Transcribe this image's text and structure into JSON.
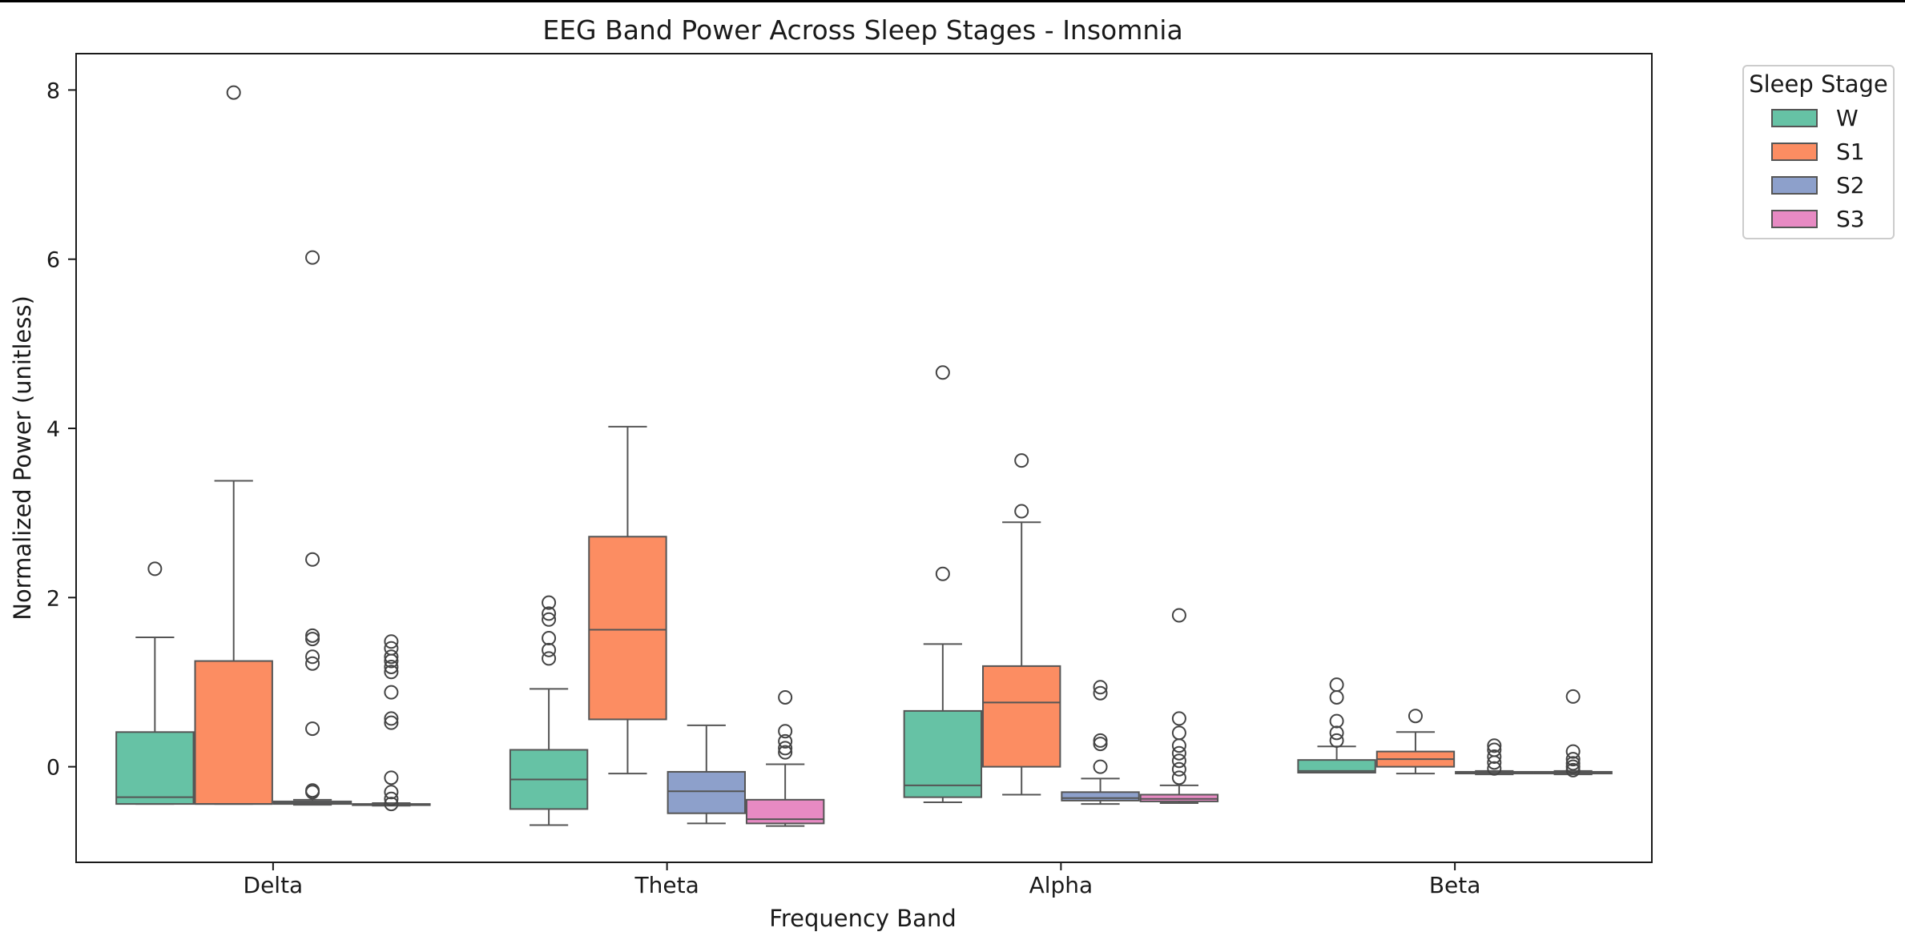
{
  "chart_data": {
    "type": "box",
    "title": "EEG Band Power Across Sleep Stages - Insomnia",
    "xlabel": "Frequency Band",
    "ylabel": "Normalized Power (unitless)",
    "categories": [
      "Delta",
      "Theta",
      "Alpha",
      "Beta"
    ],
    "yticks": [
      0,
      2,
      4,
      6,
      8
    ],
    "ylim": [
      -1.13,
      8.43
    ],
    "grid": false,
    "legend": {
      "title": "Sleep Stage",
      "placement": "outside-top-right"
    },
    "series": [
      {
        "name": "W",
        "color": "#66c2a5",
        "boxes": [
          {
            "category": "Delta",
            "whislo": -0.44,
            "q1": -0.44,
            "med": -0.36,
            "q3": 0.41,
            "whishi": 1.53,
            "fliers": [
              2.34
            ]
          },
          {
            "category": "Theta",
            "whislo": -0.69,
            "q1": -0.5,
            "med": -0.15,
            "q3": 0.2,
            "whishi": 0.92,
            "fliers": [
              1.28,
              1.38,
              1.52,
              1.74,
              1.81,
              1.94
            ]
          },
          {
            "category": "Alpha",
            "whislo": -0.42,
            "q1": -0.36,
            "med": -0.22,
            "q3": 0.66,
            "whishi": 1.45,
            "fliers": [
              2.28,
              4.66
            ]
          },
          {
            "category": "Beta",
            "whislo": -0.07,
            "q1": -0.07,
            "med": -0.05,
            "q3": 0.08,
            "whishi": 0.24,
            "fliers": [
              0.31,
              0.4,
              0.54,
              0.82,
              0.97
            ]
          }
        ]
      },
      {
        "name": "S1",
        "color": "#fc8d62",
        "boxes": [
          {
            "category": "Delta",
            "whislo": -0.44,
            "q1": -0.44,
            "med": -0.44,
            "q3": 1.25,
            "whishi": 3.38,
            "fliers": [
              7.97
            ]
          },
          {
            "category": "Theta",
            "whislo": -0.08,
            "q1": 0.56,
            "med": 1.62,
            "q3": 2.72,
            "whishi": 4.02,
            "fliers": []
          },
          {
            "category": "Alpha",
            "whislo": -0.33,
            "q1": 0.0,
            "med": 0.76,
            "q3": 1.19,
            "whishi": 2.89,
            "fliers": [
              3.02,
              3.62
            ]
          },
          {
            "category": "Beta",
            "whislo": -0.08,
            "q1": 0.0,
            "med": 0.09,
            "q3": 0.18,
            "whishi": 0.41,
            "fliers": [
              0.6
            ]
          }
        ]
      },
      {
        "name": "S2",
        "color": "#8da0cb",
        "boxes": [
          {
            "category": "Delta",
            "whislo": -0.45,
            "q1": -0.44,
            "med": -0.43,
            "q3": -0.41,
            "whishi": -0.39,
            "fliers": [
              -0.3,
              -0.28,
              0.45,
              1.22,
              1.3,
              1.51,
              1.55,
              2.45,
              6.02
            ]
          },
          {
            "category": "Theta",
            "whislo": -0.67,
            "q1": -0.55,
            "med": -0.29,
            "q3": -0.06,
            "whishi": 0.49,
            "fliers": []
          },
          {
            "category": "Alpha",
            "whislo": -0.44,
            "q1": -0.4,
            "med": -0.37,
            "q3": -0.3,
            "whishi": -0.14,
            "fliers": [
              0.0,
              0.27,
              0.31,
              0.87,
              0.94
            ]
          },
          {
            "category": "Beta",
            "whislo": -0.09,
            "q1": -0.08,
            "med": -0.07,
            "q3": -0.06,
            "whishi": -0.05,
            "fliers": [
              -0.02,
              0.05,
              0.12,
              0.2,
              0.25
            ]
          }
        ]
      },
      {
        "name": "S3",
        "color": "#e78ac3",
        "boxes": [
          {
            "category": "Delta",
            "whislo": -0.46,
            "q1": -0.45,
            "med": -0.45,
            "q3": -0.44,
            "whishi": -0.43,
            "fliers": [
              -0.44,
              -0.38,
              -0.3,
              -0.13,
              0.52,
              0.57,
              0.88,
              1.12,
              1.18,
              1.25,
              1.3,
              1.4,
              1.48
            ]
          },
          {
            "category": "Theta",
            "whislo": -0.7,
            "q1": -0.67,
            "med": -0.62,
            "q3": -0.39,
            "whishi": 0.03,
            "fliers": [
              0.17,
              0.22,
              0.3,
              0.42,
              0.82
            ]
          },
          {
            "category": "Alpha",
            "whislo": -0.43,
            "q1": -0.41,
            "med": -0.38,
            "q3": -0.33,
            "whishi": -0.22,
            "fliers": [
              -0.13,
              -0.03,
              0.07,
              0.16,
              0.25,
              0.4,
              0.57,
              1.79
            ]
          },
          {
            "category": "Beta",
            "whislo": -0.09,
            "q1": -0.08,
            "med": -0.07,
            "q3": -0.06,
            "whishi": -0.05,
            "fliers": [
              -0.04,
              0.0,
              0.04,
              0.09,
              0.18,
              0.83
            ]
          }
        ]
      }
    ]
  }
}
